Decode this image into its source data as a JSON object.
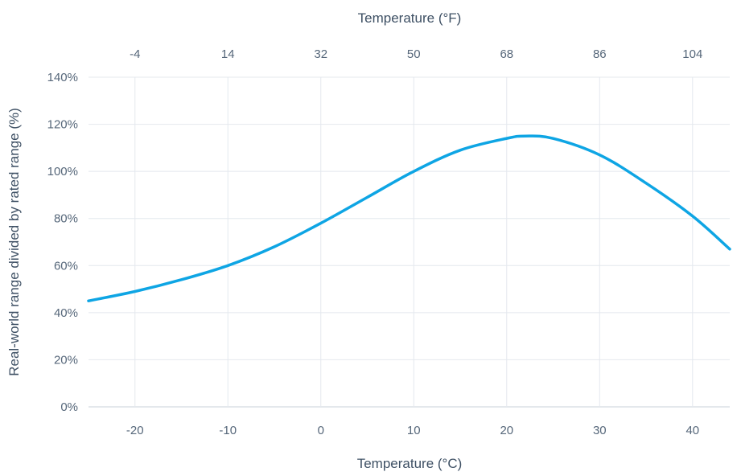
{
  "chart_data": {
    "type": "line",
    "xlabel": "Temperature (°C)",
    "x2label": "Temperature (°F)",
    "ylabel": "Real-world range divided by rated range (%)",
    "xlim": [
      -25,
      44
    ],
    "ylim": [
      0,
      140
    ],
    "x_ticks": [
      -20,
      -10,
      0,
      10,
      20,
      30,
      40
    ],
    "x_tick_labels": [
      "-20",
      "-10",
      "0",
      "10",
      "20",
      "30",
      "40"
    ],
    "x2_ticks_celsius": [
      -20,
      -10,
      0,
      10,
      20,
      30,
      40
    ],
    "x2_tick_labels": [
      "-4",
      "14",
      "32",
      "50",
      "68",
      "86",
      "104"
    ],
    "y_ticks": [
      0,
      20,
      40,
      60,
      80,
      100,
      120,
      140
    ],
    "y_tick_labels": [
      "0%",
      "20%",
      "40%",
      "60%",
      "80%",
      "100%",
      "120%",
      "140%"
    ],
    "grid": true,
    "colors": {
      "line": "#0ea5e4"
    },
    "series": [
      {
        "x": [
          -25,
          -20,
          -15,
          -10,
          -5,
          0,
          5,
          10,
          15,
          20,
          22,
          25,
          30,
          35,
          40,
          44
        ],
        "y": [
          45,
          49,
          54,
          60,
          68,
          78,
          89,
          100,
          109,
          114,
          115,
          114,
          107,
          95,
          81,
          67
        ]
      }
    ]
  }
}
